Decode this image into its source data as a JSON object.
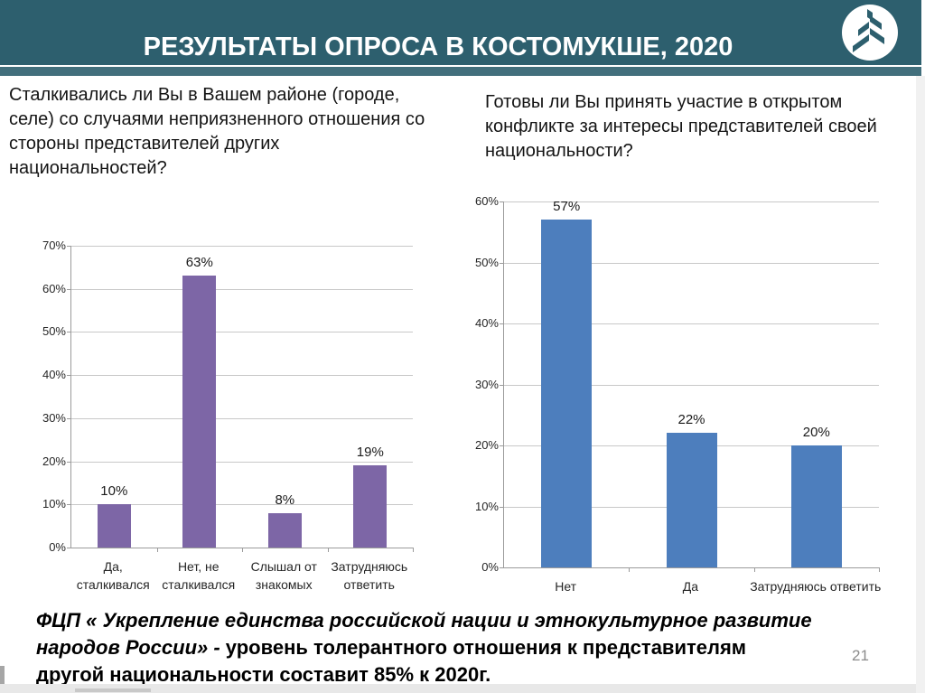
{
  "header": {
    "title": "РЕЗУЛЬТАТЫ ОПРОСА В КОСТОМУКШЕ, 2020",
    "background_color": "#2d5f6e",
    "logo": "fir-tree-logo"
  },
  "chart_data": [
    {
      "type": "bar",
      "title": "Сталкивались ли Вы в Вашем районе (городе,\nселе) со случаями неприязненного отношения со\nстороны представителей других\nнациональностей?",
      "categories": [
        "Да,\nсталкивался",
        "Нет, не\nсталкивался",
        "Слышал от\nзнакомых",
        "Затрудняюсь\nответить"
      ],
      "values": [
        10,
        63,
        8,
        19
      ],
      "data_labels": [
        "10%",
        "63%",
        "8%",
        "19%"
      ],
      "ylim": [
        0,
        70
      ],
      "y_tick_step": 10,
      "y_ticks": [
        "0%",
        "10%",
        "20%",
        "30%",
        "40%",
        "50%",
        "60%",
        "70%"
      ],
      "bar_color": "#7d66a6",
      "grid": true,
      "legend": "none",
      "xlabel": "",
      "ylabel": ""
    },
    {
      "type": "bar",
      "title": "Готовы ли Вы принять участие в открытом\nконфликте за интересы представителей своей\nнациональности?",
      "categories": [
        "Нет",
        "Да",
        "Затрудняюсь ответить"
      ],
      "values": [
        57,
        22,
        20
      ],
      "data_labels": [
        "57%",
        "22%",
        "20%"
      ],
      "ylim": [
        0,
        60
      ],
      "y_tick_step": 10,
      "y_ticks": [
        "0%",
        "10%",
        "20%",
        "30%",
        "40%",
        "50%",
        "60%"
      ],
      "bar_color": "#4d7ebd",
      "grid": true,
      "legend": "none",
      "xlabel": "",
      "ylabel": ""
    }
  ],
  "footer": {
    "lines": [
      {
        "italic": "ФЦП « Укрепление единства российской нации и этнокультурное развитие",
        "bold": ""
      },
      {
        "italic": "народов России» - ",
        "bold": "уровень толерантного отношения к представителям"
      },
      {
        "italic": "",
        "bold": "другой национальности составит 85% к 2020г."
      }
    ],
    "page_number": "21"
  },
  "colors": {
    "header_teal": "#2d5f6e",
    "accent_strip": "#426f7c",
    "purple_bar": "#7d66a6",
    "blue_bar": "#4d7ebd",
    "gridline": "#c8c8c8",
    "axis": "#9b9b9b"
  }
}
